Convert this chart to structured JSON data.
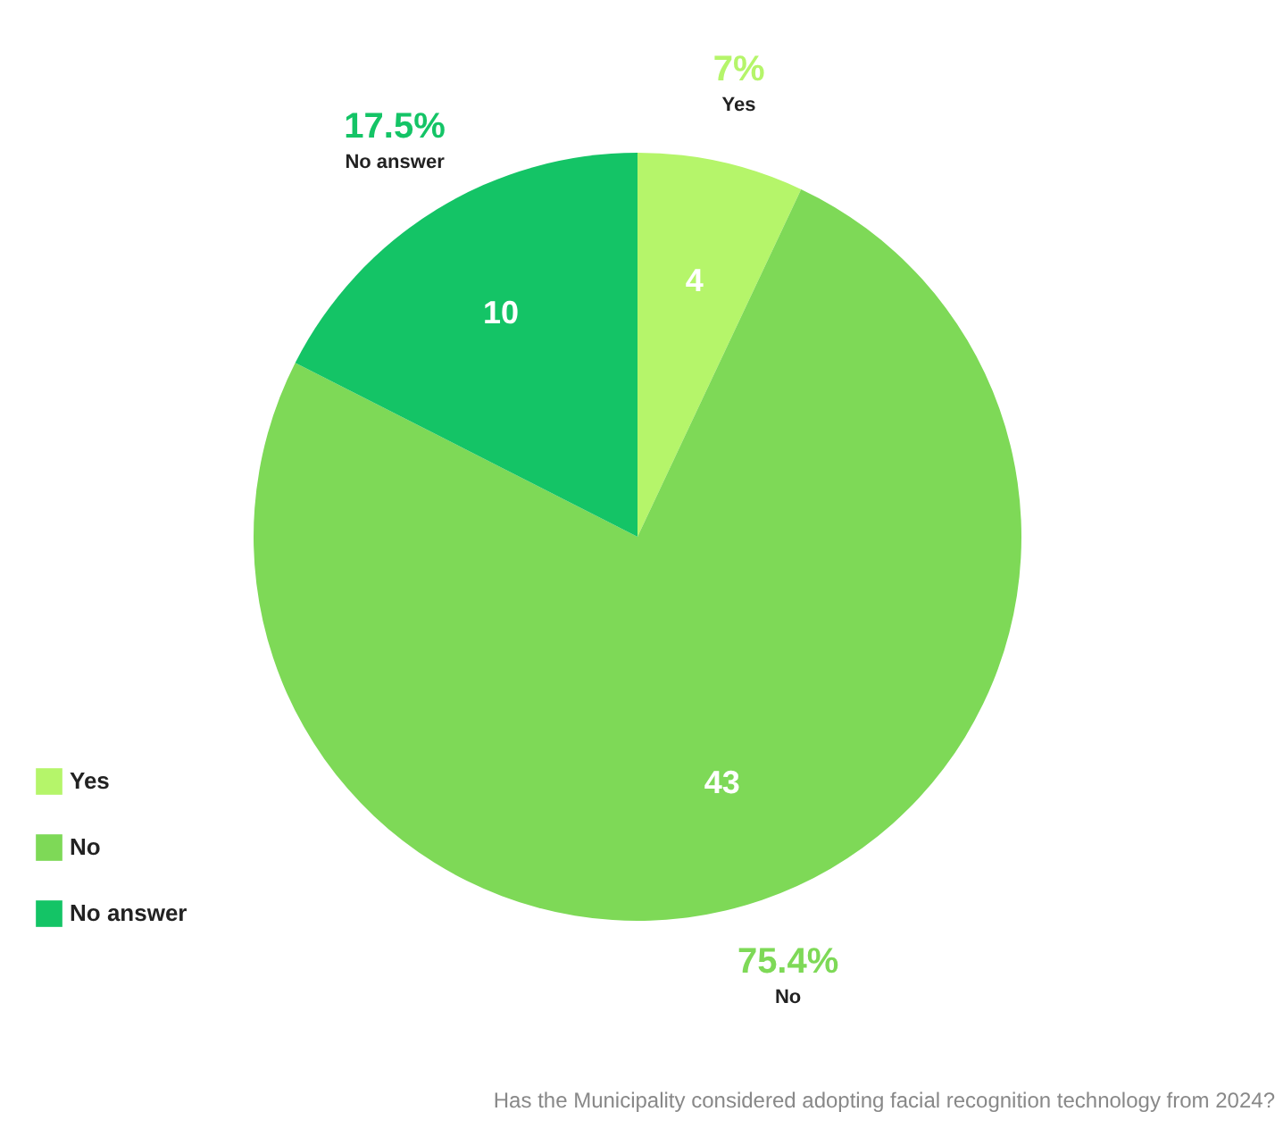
{
  "chart_data": {
    "type": "pie",
    "title": "Has the Municipality considered adopting facial recognition technology from 2024?",
    "categories": [
      "Yes",
      "No",
      "No answer"
    ],
    "values": [
      7,
      75.4,
      17.5
    ],
    "annotations": [
      {
        "text": "4",
        "x": "Yes"
      },
      {
        "text": "43",
        "x": "No"
      },
      {
        "text": "10",
        "x": "No answer"
      }
    ],
    "colors": [
      "#b5f56a",
      "#7ed957",
      "#14c466"
    ],
    "value_labels": [
      "7%",
      "75.4%",
      "17.5%"
    ],
    "legend": "bottom left"
  }
}
